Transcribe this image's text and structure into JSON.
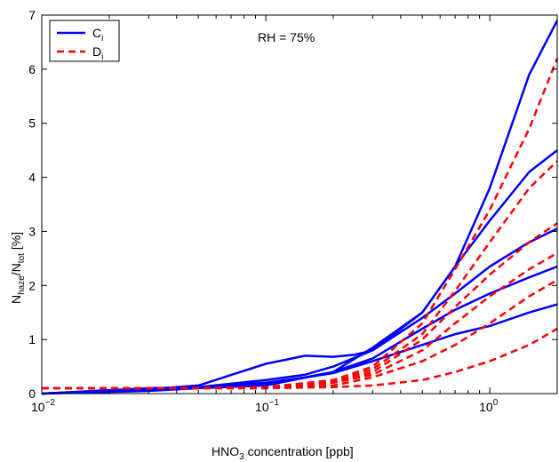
{
  "chart_data": {
    "type": "line",
    "title": "",
    "annotation": "RH = 75%",
    "xscale": "log",
    "xlim": [
      0.01,
      2
    ],
    "ylim": [
      0,
      7
    ],
    "xlabel": {
      "base": "HNO",
      "sub": "3",
      "rest": " concentration [ppb]"
    },
    "ylabel": {
      "p1": "N",
      "sub1": "haze",
      "p2": "/N",
      "sub2": "tot",
      "p3": " [%]"
    },
    "xticks": [
      {
        "value": 0.01,
        "base": "10",
        "exp": "−2"
      },
      {
        "value": 0.1,
        "base": "10",
        "exp": "−1"
      },
      {
        "value": 1,
        "base": "10",
        "exp": "0"
      }
    ],
    "yticks": [
      "0",
      "1",
      "2",
      "3",
      "4",
      "5",
      "6",
      "7"
    ],
    "grid": false,
    "legend_position": "top-left",
    "legend": [
      {
        "base": "C",
        "sub": "i",
        "color": "#0000ff",
        "style": "solid"
      },
      {
        "base": "D",
        "sub": "i",
        "color": "#ff0000",
        "style": "dashed"
      }
    ],
    "series": [
      {
        "group": "C",
        "color": "#0000ff",
        "style": "solid",
        "points": [
          [
            0.01,
            0
          ],
          [
            0.03,
            0.05
          ],
          [
            0.05,
            0.1
          ],
          [
            0.1,
            0.15
          ],
          [
            0.2,
            0.4
          ],
          [
            0.3,
            0.85
          ],
          [
            0.5,
            1.5
          ],
          [
            0.7,
            2.35
          ],
          [
            1,
            3.8
          ],
          [
            1.5,
            5.9
          ],
          [
            2,
            6.9
          ]
        ]
      },
      {
        "group": "C",
        "color": "#0000ff",
        "style": "solid",
        "points": [
          [
            0.01,
            0
          ],
          [
            0.03,
            0.08
          ],
          [
            0.05,
            0.15
          ],
          [
            0.1,
            0.55
          ],
          [
            0.15,
            0.7
          ],
          [
            0.2,
            0.68
          ],
          [
            0.25,
            0.72
          ],
          [
            0.3,
            0.8
          ],
          [
            0.5,
            1.5
          ],
          [
            0.7,
            2.35
          ],
          [
            1,
            3.2
          ],
          [
            1.5,
            4.1
          ],
          [
            2,
            4.5
          ]
        ]
      },
      {
        "group": "C",
        "color": "#0000ff",
        "style": "solid",
        "points": [
          [
            0.01,
            0
          ],
          [
            0.03,
            0.08
          ],
          [
            0.05,
            0.12
          ],
          [
            0.1,
            0.25
          ],
          [
            0.15,
            0.35
          ],
          [
            0.2,
            0.5
          ],
          [
            0.3,
            0.8
          ],
          [
            0.5,
            1.4
          ],
          [
            0.7,
            1.85
          ],
          [
            1,
            2.35
          ],
          [
            1.5,
            2.8
          ],
          [
            2,
            3.05
          ]
        ]
      },
      {
        "group": "C",
        "color": "#0000ff",
        "style": "solid",
        "points": [
          [
            0.01,
            0
          ],
          [
            0.03,
            0.1
          ],
          [
            0.05,
            0.12
          ],
          [
            0.1,
            0.2
          ],
          [
            0.15,
            0.3
          ],
          [
            0.2,
            0.4
          ],
          [
            0.3,
            0.65
          ],
          [
            0.5,
            1.2
          ],
          [
            0.7,
            1.55
          ],
          [
            1,
            1.85
          ],
          [
            1.5,
            2.15
          ],
          [
            2,
            2.35
          ]
        ]
      },
      {
        "group": "C",
        "color": "#0000ff",
        "style": "solid",
        "points": [
          [
            0.01,
            0
          ],
          [
            0.03,
            0.07
          ],
          [
            0.05,
            0.12
          ],
          [
            0.1,
            0.18
          ],
          [
            0.2,
            0.38
          ],
          [
            0.3,
            0.6
          ],
          [
            0.5,
            0.9
          ],
          [
            0.7,
            1.1
          ],
          [
            1,
            1.25
          ],
          [
            1.5,
            1.5
          ],
          [
            2,
            1.65
          ]
        ]
      },
      {
        "group": "D",
        "color": "#ff0000",
        "style": "dashed",
        "points": [
          [
            0.01,
            0.1
          ],
          [
            0.03,
            0.1
          ],
          [
            0.05,
            0.1
          ],
          [
            0.1,
            0.12
          ],
          [
            0.2,
            0.25
          ],
          [
            0.3,
            0.5
          ],
          [
            0.5,
            1.3
          ],
          [
            0.7,
            2.3
          ],
          [
            1,
            3.4
          ],
          [
            1.5,
            4.9
          ],
          [
            2,
            6.2
          ]
        ]
      },
      {
        "group": "D",
        "color": "#ff0000",
        "style": "dashed",
        "points": [
          [
            0.01,
            0.1
          ],
          [
            0.03,
            0.1
          ],
          [
            0.05,
            0.1
          ],
          [
            0.1,
            0.12
          ],
          [
            0.2,
            0.22
          ],
          [
            0.3,
            0.45
          ],
          [
            0.5,
            1.1
          ],
          [
            0.7,
            1.9
          ],
          [
            1,
            2.8
          ],
          [
            1.5,
            3.8
          ],
          [
            2,
            4.3
          ]
        ]
      },
      {
        "group": "D",
        "color": "#ff0000",
        "style": "dashed",
        "points": [
          [
            0.01,
            0.1
          ],
          [
            0.03,
            0.1
          ],
          [
            0.05,
            0.1
          ],
          [
            0.1,
            0.1
          ],
          [
            0.2,
            0.2
          ],
          [
            0.3,
            0.4
          ],
          [
            0.5,
            1.0
          ],
          [
            0.7,
            1.6
          ],
          [
            1,
            2.2
          ],
          [
            1.5,
            2.8
          ],
          [
            2,
            3.15
          ]
        ]
      },
      {
        "group": "D",
        "color": "#ff0000",
        "style": "dashed",
        "points": [
          [
            0.01,
            0.1
          ],
          [
            0.03,
            0.1
          ],
          [
            0.05,
            0.1
          ],
          [
            0.1,
            0.1
          ],
          [
            0.2,
            0.2
          ],
          [
            0.3,
            0.35
          ],
          [
            0.5,
            0.8
          ],
          [
            0.7,
            1.3
          ],
          [
            1,
            1.8
          ],
          [
            1.5,
            2.3
          ],
          [
            2,
            2.6
          ]
        ]
      },
      {
        "group": "D",
        "color": "#ff0000",
        "style": "dashed",
        "points": [
          [
            0.01,
            0.1
          ],
          [
            0.03,
            0.1
          ],
          [
            0.05,
            0.1
          ],
          [
            0.1,
            0.1
          ],
          [
            0.2,
            0.15
          ],
          [
            0.3,
            0.3
          ],
          [
            0.5,
            0.6
          ],
          [
            0.7,
            0.9
          ],
          [
            1,
            1.3
          ],
          [
            1.5,
            1.8
          ],
          [
            2,
            2.1
          ]
        ]
      },
      {
        "group": "D",
        "color": "#ff0000",
        "style": "dashed",
        "points": [
          [
            0.01,
            0.1
          ],
          [
            0.03,
            0.1
          ],
          [
            0.05,
            0.1
          ],
          [
            0.1,
            0.1
          ],
          [
            0.2,
            0.12
          ],
          [
            0.3,
            0.15
          ],
          [
            0.5,
            0.25
          ],
          [
            0.7,
            0.4
          ],
          [
            1,
            0.6
          ],
          [
            1.5,
            0.9
          ],
          [
            2,
            1.2
          ]
        ]
      }
    ]
  }
}
